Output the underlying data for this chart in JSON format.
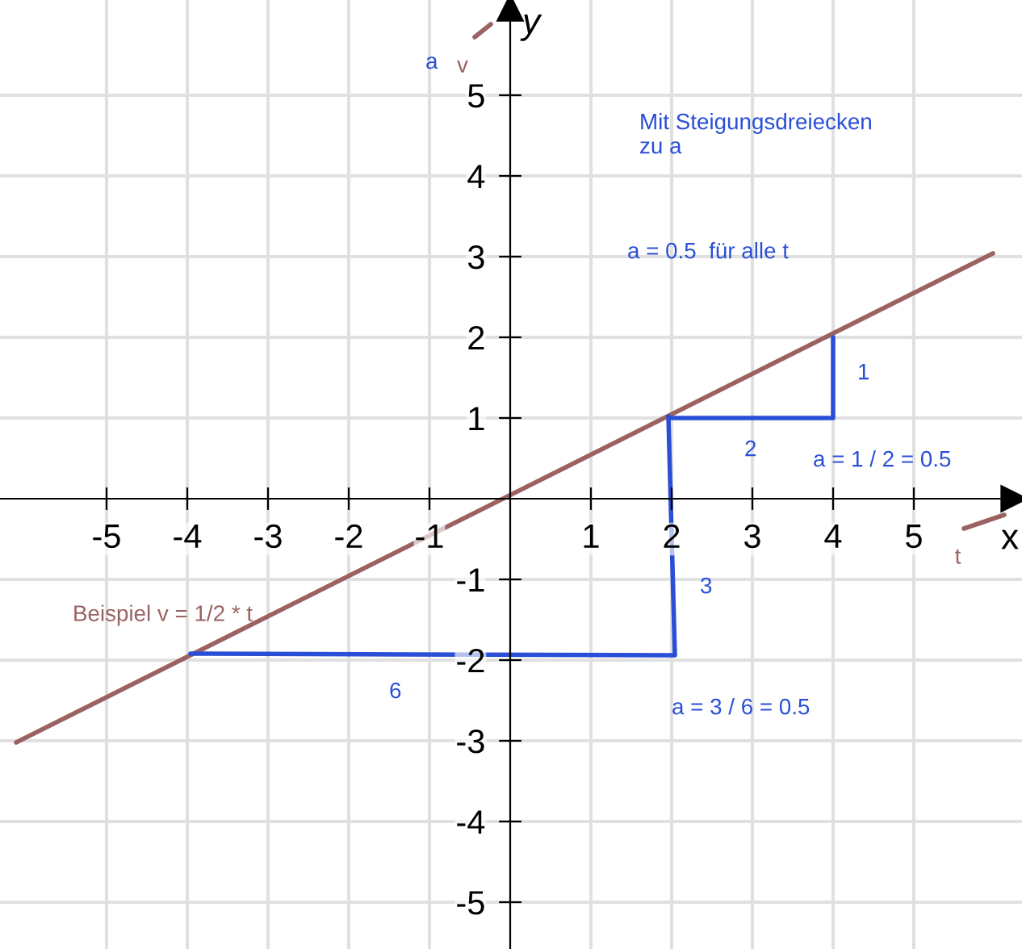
{
  "chart_data": {
    "type": "line",
    "xlabel": "x",
    "ylabel": "y",
    "xlim": [
      -6.32,
      6.34
    ],
    "ylim": [
      -5.58,
      6.18
    ],
    "xticks": [
      -5,
      -4,
      -3,
      -2,
      -1,
      1,
      2,
      3,
      4,
      5
    ],
    "yticks": [
      -5,
      -4,
      -3,
      -2,
      -1,
      1,
      2,
      3,
      4,
      5
    ],
    "grid": true,
    "marker": "none",
    "line_style": "solid",
    "series": [
      {
        "name": "Beispiel v = 1/2 * t",
        "color": "#9b6262",
        "x": [
          -6.12,
          5.98
        ],
        "values": [
          -3.02,
          3.04
        ]
      },
      {
        "name": "t",
        "color": "#9b6262",
        "x": [
          5.62,
          6.12
        ],
        "values": [
          -0.37,
          -0.2
        ]
      },
      {
        "name": "v",
        "color": "#9b6262",
        "x": [
          -0.44,
          -0.24
        ],
        "values": [
          5.72,
          5.88
        ]
      },
      {
        "color": "#2a4fd6",
        "x": [
          2,
          4,
          4
        ],
        "values": [
          1,
          1,
          2
        ]
      },
      {
        "color": "#2a4fd6",
        "x": [
          1.96,
          2.04,
          -3.96
        ],
        "values": [
          1.02,
          -1.94,
          -1.92
        ]
      }
    ],
    "annotations": [
      "a",
      "Mit Steigungsdreiecken\nzu a",
      "a = 0.5  für alle t",
      "1",
      "2",
      "a = 1 / 2 = 0.5",
      "3",
      "6",
      "a = 3 / 6 = 0.5"
    ]
  }
}
